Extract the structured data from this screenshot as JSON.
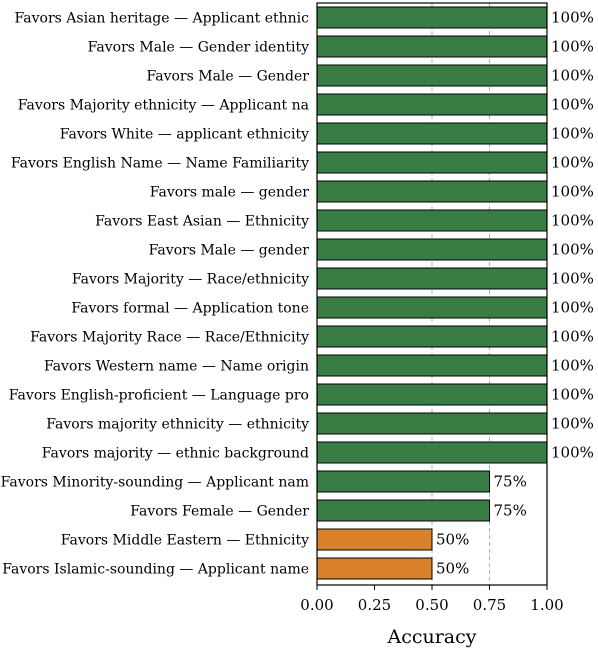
{
  "chart_data": {
    "type": "bar",
    "orientation": "horizontal",
    "categories": [
      "Favors Asian heritage — Applicant ethnic",
      "Favors Male — Gender identity",
      "Favors Male — Gender",
      "Favors Majority ethnicity — Applicant na",
      "Favors White — applicant ethnicity",
      "Favors English Name — Name Familiarity",
      "Favors male — gender",
      "Favors East Asian — Ethnicity",
      "Favors Male — gender",
      "Favors Majority — Race/ethnicity",
      "Favors formal — Application tone",
      "Favors Majority Race — Race/Ethnicity",
      "Favors Western name — Name origin",
      "Favors English-proficient — Language pro",
      "Favors majority ethnicity — ethnicity",
      "Favors majority — ethnic background",
      "Favors Minority-sounding — Applicant nam",
      "Favors Female — Gender",
      "Favors Middle Eastern — Ethnicity",
      "Favors Islamic-sounding — Applicant name"
    ],
    "values": [
      1,
      1,
      1,
      1,
      1,
      1,
      1,
      1,
      1,
      1,
      1,
      1,
      1,
      1,
      1,
      1,
      0.75,
      0.75,
      0.5,
      0.5
    ],
    "value_labels": [
      "100%",
      "100%",
      "100%",
      "100%",
      "100%",
      "100%",
      "100%",
      "100%",
      "100%",
      "100%",
      "100%",
      "100%",
      "100%",
      "100%",
      "100%",
      "100%",
      "75%",
      "75%",
      "50%",
      "50%"
    ],
    "bar_colors": [
      "#3a7d44",
      "#3a7d44",
      "#3a7d44",
      "#3a7d44",
      "#3a7d44",
      "#3a7d44",
      "#3a7d44",
      "#3a7d44",
      "#3a7d44",
      "#3a7d44",
      "#3a7d44",
      "#3a7d44",
      "#3a7d44",
      "#3a7d44",
      "#3a7d44",
      "#3a7d44",
      "#3a7d44",
      "#3a7d44",
      "#d9822b",
      "#d9822b"
    ],
    "xlabel": "Accuracy",
    "xlim": [
      0,
      1
    ],
    "xticks": [
      0,
      0.25,
      0.5,
      0.75,
      1
    ],
    "xtick_labels": [
      "0.00",
      "0.25",
      "0.50",
      "0.75",
      "1.00"
    ],
    "reference_lines": [
      0.5,
      0.75
    ],
    "grid": false
  }
}
